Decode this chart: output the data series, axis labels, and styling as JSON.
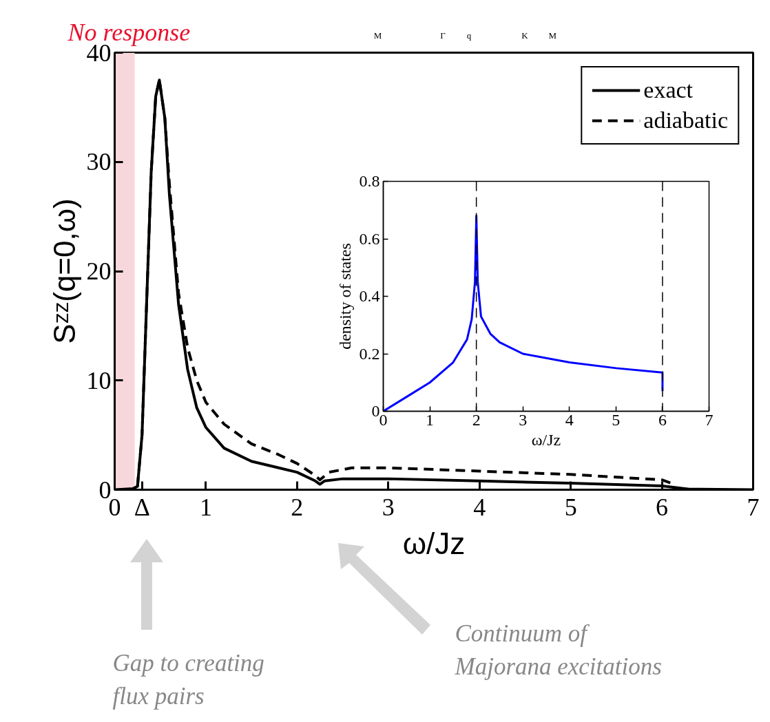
{
  "chart_data": [
    {
      "type": "line",
      "xlabel": "ω/Jz",
      "ylabel": "Sᶻᶻ(q=0,ω)",
      "xlim": [
        0,
        7
      ],
      "ylim": [
        0,
        40
      ],
      "xticks": [
        0,
        {
          "value": 0.3,
          "label": "Δ"
        },
        1,
        2,
        3,
        4,
        5,
        6,
        7
      ],
      "yticks": [
        0,
        10,
        20,
        30,
        40
      ],
      "grid": false,
      "legend": "top right",
      "series": [
        {
          "name": "exact",
          "color": "#000000",
          "line_style": "solid",
          "x": [
            0,
            0.2,
            0.25,
            0.3,
            0.35,
            0.4,
            0.45,
            0.49,
            0.55,
            0.6,
            0.7,
            0.8,
            0.9,
            1.0,
            1.2,
            1.5,
            1.8,
            2.0,
            2.2,
            2.25,
            2.3,
            2.5,
            3,
            4,
            5,
            6,
            6.3,
            7
          ],
          "values": [
            0,
            0.1,
            0.3,
            5,
            17,
            29,
            36,
            37.5,
            34,
            27,
            17,
            11,
            7.5,
            5.7,
            3.8,
            2.6,
            2.0,
            1.6,
            0.8,
            0.5,
            0.8,
            1.0,
            1.0,
            0.8,
            0.6,
            0.35,
            0.05,
            0
          ]
        },
        {
          "name": "adiabatic",
          "color": "#000000",
          "line_style": "dashed",
          "x": [
            0.25,
            0.3,
            0.35,
            0.4,
            0.45,
            0.49,
            0.55,
            0.6,
            0.7,
            0.8,
            0.9,
            1.0,
            1.2,
            1.5,
            1.8,
            2.0,
            2.2,
            2.25,
            2.35,
            2.6,
            3,
            4,
            5,
            6,
            6.1
          ],
          "values": [
            0.3,
            5,
            17,
            29,
            36,
            37.5,
            34,
            28,
            18,
            13,
            10,
            8,
            6,
            4.2,
            3.2,
            2.4,
            1.3,
            0.9,
            1.6,
            2.0,
            2.0,
            1.7,
            1.4,
            0.9,
            0.6
          ]
        }
      ],
      "bands": [
        {
          "axis": "x",
          "from": 0,
          "to": 0.22,
          "label": "No response",
          "color": "#f8d7dc"
        }
      ],
      "annotations": [
        "Gap to creating\nflux pairs",
        "Continuum of\nMajorana excitations"
      ]
    },
    {
      "type": "line",
      "xlabel": "ω/Jz",
      "ylabel": "density of states",
      "xlim": [
        0,
        7
      ],
      "ylim": [
        0,
        0.8
      ],
      "xticks": [
        0,
        1,
        2,
        3,
        4,
        5,
        6,
        7
      ],
      "yticks": [
        0,
        0.2,
        0.4,
        0.6,
        0.8
      ],
      "grid": false,
      "legend": false,
      "series": [
        {
          "color": "#0000ff",
          "line_style": "solid",
          "x": [
            0,
            0.5,
            1,
            1.5,
            1.8,
            1.9,
            1.97,
            2,
            2.03,
            2.1,
            2.3,
            2.5,
            3,
            4,
            5,
            6,
            6
          ],
          "values": [
            0,
            0.05,
            0.1,
            0.17,
            0.25,
            0.32,
            0.45,
            0.68,
            0.45,
            0.33,
            0.27,
            0.24,
            0.2,
            0.17,
            0.15,
            0.135,
            0.07
          ]
        }
      ],
      "ref_lines": [
        {
          "axis": "x",
          "value": 2,
          "color": "#000000",
          "line_style": "dashed"
        },
        {
          "axis": "x",
          "value": 6,
          "color": "#000000",
          "line_style": "dashed"
        }
      ]
    },
    {
      "type": "other",
      "annotations": [
        "M",
        "Γ",
        "q",
        "K",
        "M"
      ]
    }
  ]
}
